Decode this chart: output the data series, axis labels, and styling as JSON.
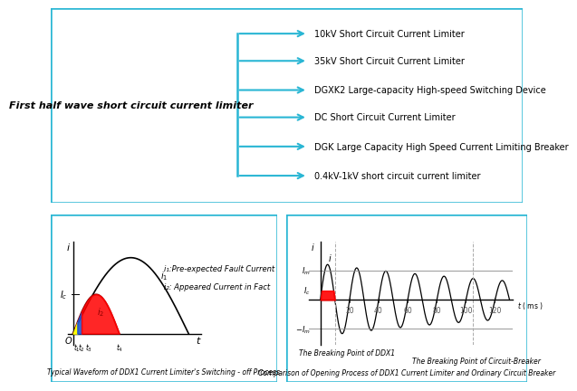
{
  "title_box": "First half wave short circuit current limiter",
  "items": [
    "10kV Short Circuit Current Limiter",
    "35kV Short Circuit Current Limiter",
    "DGXK2 Large-capacity High-speed Switching Device",
    "DC Short Circuit Current Limiter",
    "DGK Large Capacity High Speed Current Limiting Breaker",
    "0.4kV-1kV short circuit current limiter"
  ],
  "box_color": "#29b6d4",
  "bg_color": "#ffffff",
  "arrow_color": "#29b6d4",
  "label1_caption": "Typical Waveform of DDX1 Current Limiter's Switching - off Process",
  "label2_caption": "Comparison of Opening Process of DDX1 Current Limiter and Ordinary Circuit Breaker",
  "legend1": "i₁:Pre-expected Fault Current",
  "legend2": "i₂: Appeared Current in Fact",
  "breaking_ddx1": "The Breaking Point of DDX1",
  "breaking_cb": "The Breaking Point of Circuit-Breaker"
}
